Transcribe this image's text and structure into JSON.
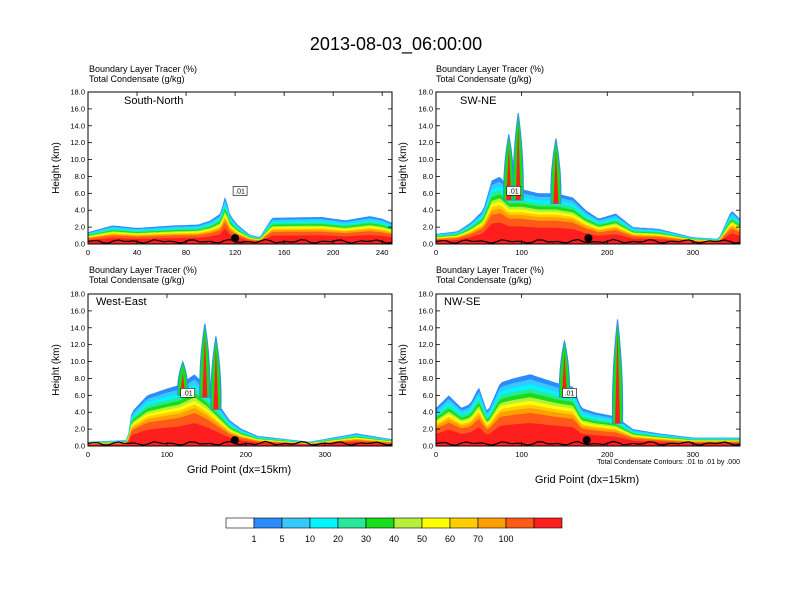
{
  "figure": {
    "title": "2013-08-03_06:00:00",
    "note": "Total Condensate Contours: .01 to .01 by .000"
  },
  "chart_data": [
    {
      "type": "heatmap",
      "name": "South-North",
      "left_title_lines": [
        "Boundary Layer Tracer    (%)",
        "Total Condensate    (g/kg)"
      ],
      "ylabel": "Height (km)",
      "xlabel": "",
      "xlim": [
        0,
        248
      ],
      "ylim": [
        0,
        18
      ],
      "xticks": [
        0,
        40,
        80,
        120,
        160,
        200,
        240
      ],
      "yticks": [
        "0.0",
        "2.0",
        "4.0",
        "6.0",
        "8.0",
        "10.0",
        "12.0",
        "14.0",
        "16.0",
        "18.0"
      ],
      "contour_label": ".01",
      "layer_top": [
        [
          0,
          1.4
        ],
        [
          20,
          2.2
        ],
        [
          40,
          1.9
        ],
        [
          70,
          2.2
        ],
        [
          90,
          2.3
        ],
        [
          100,
          2.8
        ],
        [
          108,
          3.6
        ],
        [
          112,
          5.8
        ],
        [
          116,
          3.4
        ],
        [
          122,
          2.3
        ],
        [
          132,
          1.1
        ],
        [
          140,
          0.8
        ],
        [
          150,
          3.1
        ],
        [
          190,
          3.2
        ],
        [
          210,
          2.8
        ],
        [
          230,
          3.3
        ],
        [
          240,
          3.0
        ],
        [
          248,
          2.5
        ]
      ],
      "convective_columns": [],
      "marker_x": 120
    },
    {
      "type": "heatmap",
      "name": "SW-NE",
      "left_title_lines": [
        "Boundary Layer Tracer    (%)",
        "Total Condensate    (g/kg)"
      ],
      "ylabel": "Height (km)",
      "xlabel": "",
      "xlim": [
        0,
        355
      ],
      "ylim": [
        0,
        18
      ],
      "xticks": [
        0,
        100,
        200,
        300
      ],
      "yticks": [
        "0.0",
        "2.0",
        "4.0",
        "6.0",
        "8.0",
        "10.0",
        "12.0",
        "14.0",
        "16.0",
        "18.0"
      ],
      "contour_label": ".01",
      "layer_top": [
        [
          0,
          1.2
        ],
        [
          25,
          1.5
        ],
        [
          40,
          2.5
        ],
        [
          55,
          4.0
        ],
        [
          65,
          7.5
        ],
        [
          75,
          8.0
        ],
        [
          85,
          6.5
        ],
        [
          100,
          6.5
        ],
        [
          120,
          6.0
        ],
        [
          140,
          6.0
        ],
        [
          160,
          5.5
        ],
        [
          175,
          4.0
        ],
        [
          190,
          3.0
        ],
        [
          210,
          3.6
        ],
        [
          230,
          2.0
        ],
        [
          260,
          1.8
        ],
        [
          300,
          0.8
        ],
        [
          330,
          0.6
        ],
        [
          345,
          4.0
        ],
        [
          355,
          3.0
        ]
      ],
      "convective_columns": [
        [
          85,
          13.0
        ],
        [
          96,
          15.5
        ],
        [
          140,
          12.5
        ]
      ],
      "marker_x": 178
    },
    {
      "type": "heatmap",
      "name": "West-East",
      "left_title_lines": [
        "Boundary Layer Tracer    (%)",
        "Total Condensate    (g/kg)"
      ],
      "ylabel": "Height (km)",
      "xlabel": "Grid Point (dx=15km)",
      "xlim": [
        0,
        385
      ],
      "ylim": [
        0,
        18
      ],
      "xticks": [
        0,
        100,
        200,
        300
      ],
      "yticks": [
        "0.0",
        "2.0",
        "4.0",
        "6.0",
        "8.0",
        "10.0",
        "12.0",
        "14.0",
        "16.0",
        "18.0"
      ],
      "contour_label": ".01",
      "layer_top": [
        [
          0,
          0.5
        ],
        [
          50,
          0.7
        ],
        [
          55,
          4.0
        ],
        [
          75,
          6.0
        ],
        [
          100,
          6.8
        ],
        [
          115,
          7.2
        ],
        [
          135,
          8.5
        ],
        [
          150,
          7.0
        ],
        [
          165,
          5.0
        ],
        [
          180,
          3.0
        ],
        [
          195,
          2.0
        ],
        [
          215,
          1.2
        ],
        [
          280,
          0.5
        ],
        [
          340,
          1.5
        ],
        [
          385,
          0.8
        ]
      ],
      "convective_columns": [
        [
          120,
          10.0
        ],
        [
          148,
          14.5
        ],
        [
          162,
          13.0
        ]
      ],
      "marker_x": 186
    },
    {
      "type": "heatmap",
      "name": "NW-SE",
      "left_title_lines": [
        "Boundary Layer Tracer    (%)",
        "Total Condensate    (g/kg)"
      ],
      "ylabel": "Height (km)",
      "xlabel": "Grid Point (dx=15km)",
      "xlim": [
        0,
        355
      ],
      "ylim": [
        0,
        18
      ],
      "xticks": [
        0,
        100,
        200,
        300
      ],
      "yticks": [
        "0.0",
        "2.0",
        "4.0",
        "6.0",
        "8.0",
        "10.0",
        "12.0",
        "14.0",
        "16.0",
        "18.0"
      ],
      "contour_label": ".01",
      "layer_top": [
        [
          0,
          4.5
        ],
        [
          15,
          6.0
        ],
        [
          30,
          4.5
        ],
        [
          40,
          5.0
        ],
        [
          50,
          7.0
        ],
        [
          60,
          4.0
        ],
        [
          75,
          7.5
        ],
        [
          90,
          8.0
        ],
        [
          110,
          8.5
        ],
        [
          140,
          7.5
        ],
        [
          160,
          7.0
        ],
        [
          170,
          4.5
        ],
        [
          185,
          4.0
        ],
        [
          210,
          3.5
        ],
        [
          230,
          2.0
        ],
        [
          260,
          1.5
        ],
        [
          300,
          1.0
        ],
        [
          355,
          1.0
        ]
      ],
      "convective_columns": [
        [
          150,
          12.5
        ],
        [
          212,
          15.0
        ]
      ],
      "marker_x": 176
    }
  ],
  "colorbar": {
    "labels": [
      "1",
      "5",
      "10",
      "20",
      "30",
      "40",
      "50",
      "60",
      "70",
      "100"
    ],
    "colors": [
      "#ffffff",
      "#2a8cff",
      "#36c8ff",
      "#00f5ff",
      "#28e89a",
      "#18dd18",
      "#b4f03c",
      "#ffff00",
      "#ffcd00",
      "#ffa000",
      "#ff5a19",
      "#ff1e1e"
    ]
  }
}
